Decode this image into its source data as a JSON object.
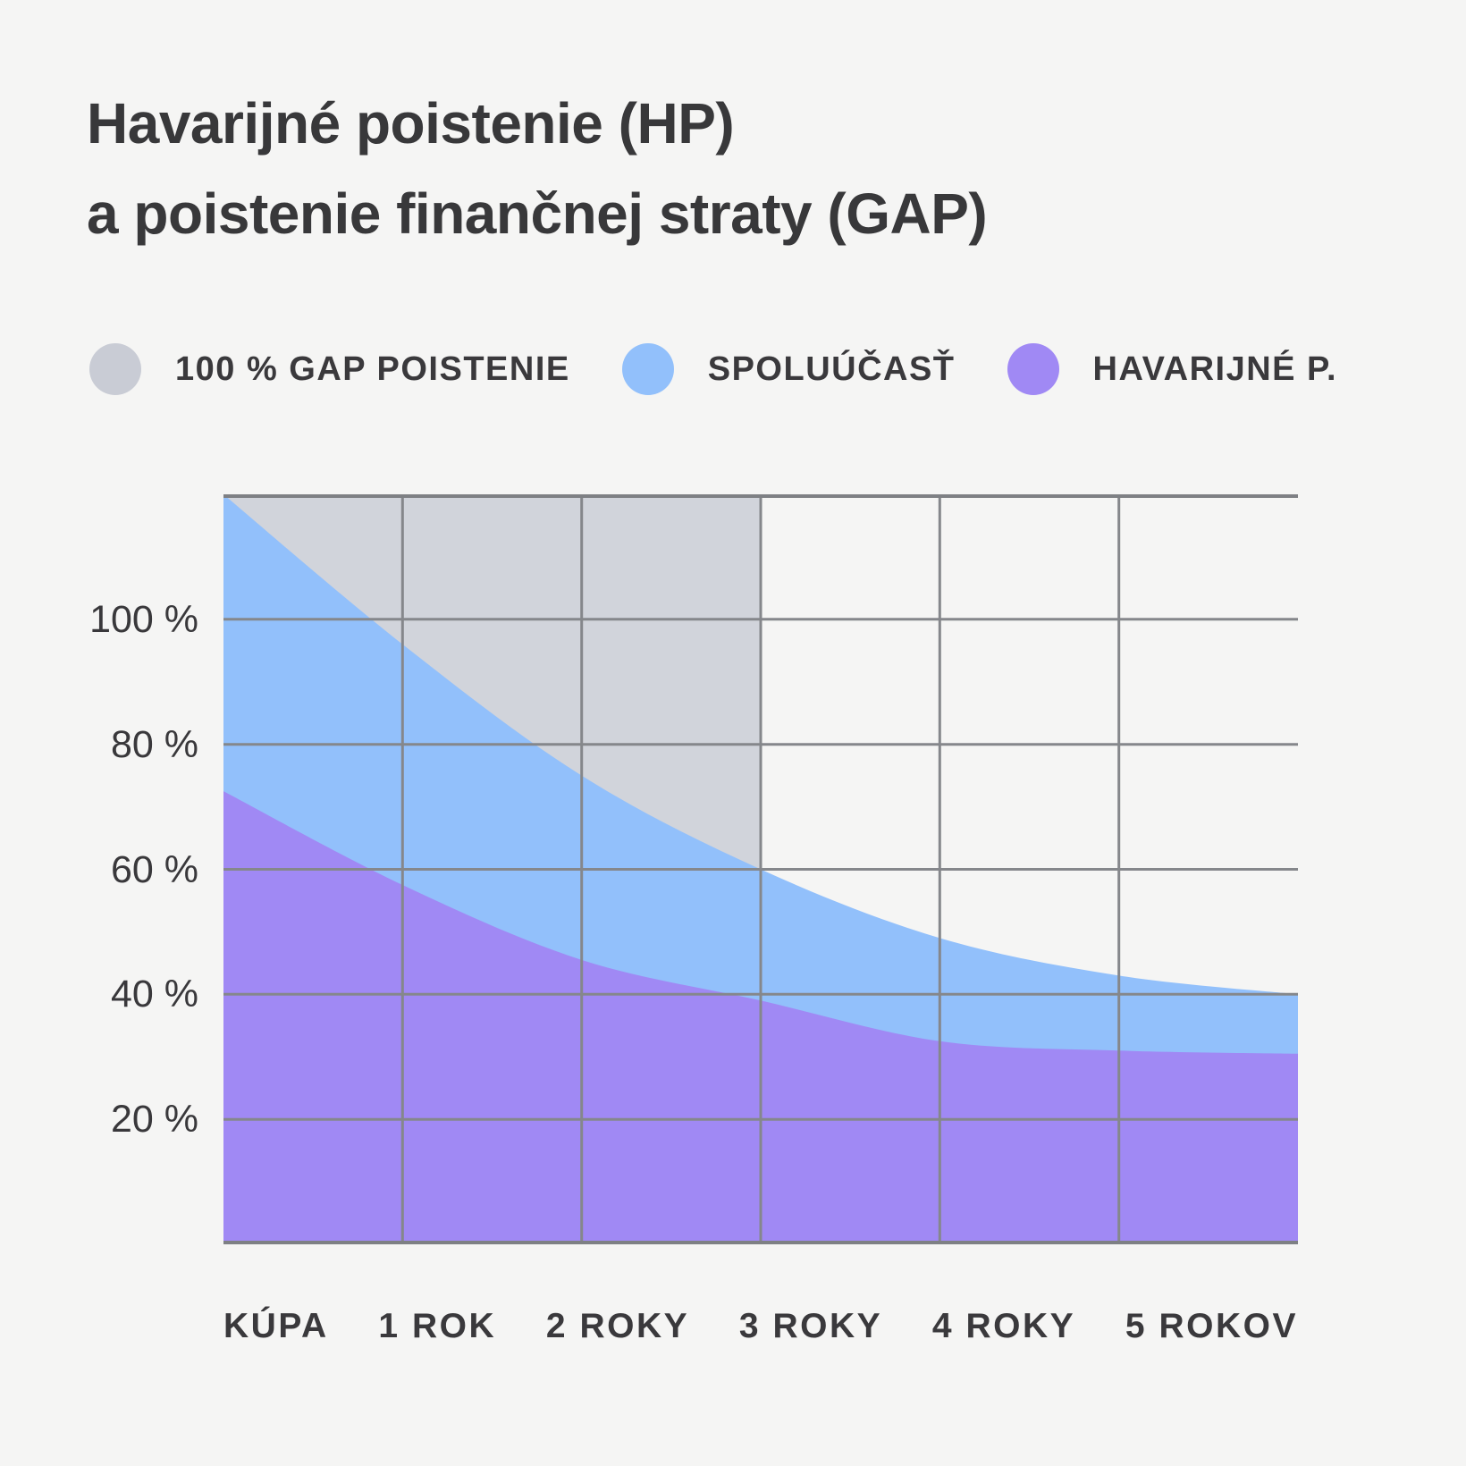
{
  "page": {
    "background_color": "#f5f5f4"
  },
  "title": {
    "line1": "Havarijné poistenie (HP)",
    "line2": "a poistenie finančnej straty (GAP)"
  },
  "legend": [
    {
      "icon": "circle-swatch",
      "label": "100 % GAP POISTENIE",
      "color": "#c9ccd5"
    },
    {
      "icon": "circle-swatch",
      "label": "SPOLUÚČASŤ",
      "color": "#92c0fb"
    },
    {
      "icon": "circle-swatch",
      "label": "HAVARIJNÉ P.",
      "color": "#a089f4"
    }
  ],
  "chart_data": {
    "type": "area",
    "title": "Havarijné poistenie (HP) a poistenie finančnej straty (GAP)",
    "x_tick_labels": [
      "KÚPA",
      "1 ROK",
      "2 ROKY",
      "3 ROKY",
      "4 ROKY",
      "5 ROKOV"
    ],
    "x_years": [
      0,
      1,
      2,
      3,
      4,
      5,
      6
    ],
    "xlim_years": [
      0,
      6
    ],
    "ylim_percent": [
      0,
      120
    ],
    "yticks": [
      {
        "value": 100,
        "label": "100 %"
      },
      {
        "value": 80,
        "label": "80 %"
      },
      {
        "value": 60,
        "label": "60 %"
      },
      {
        "value": 40,
        "label": "40 %"
      },
      {
        "value": 20,
        "label": "20 %"
      }
    ],
    "grid": true,
    "legend_position": "top",
    "series": [
      {
        "name": "100 % GAP POISTENIE",
        "type": "band_above_series",
        "above_series": "SPOLUÚČASŤ",
        "top_percent": 120,
        "x_start_year": 0,
        "x_end_year": 3,
        "color": "#d1d4db"
      },
      {
        "name": "SPOLUÚČASŤ",
        "type": "area",
        "color": "#92c0fb",
        "values_percent": [
          120,
          96,
          75,
          60,
          49,
          43,
          40
        ]
      },
      {
        "name": "HAVARIJNÉ P.",
        "type": "area",
        "color": "#a089f4",
        "values_percent": [
          72.5,
          57.5,
          45.5,
          39,
          32.5,
          31,
          30.5
        ]
      }
    ]
  },
  "colors": {
    "grid_line": "#85878b",
    "plot_border": "#7e8084",
    "text": "#39383b"
  }
}
